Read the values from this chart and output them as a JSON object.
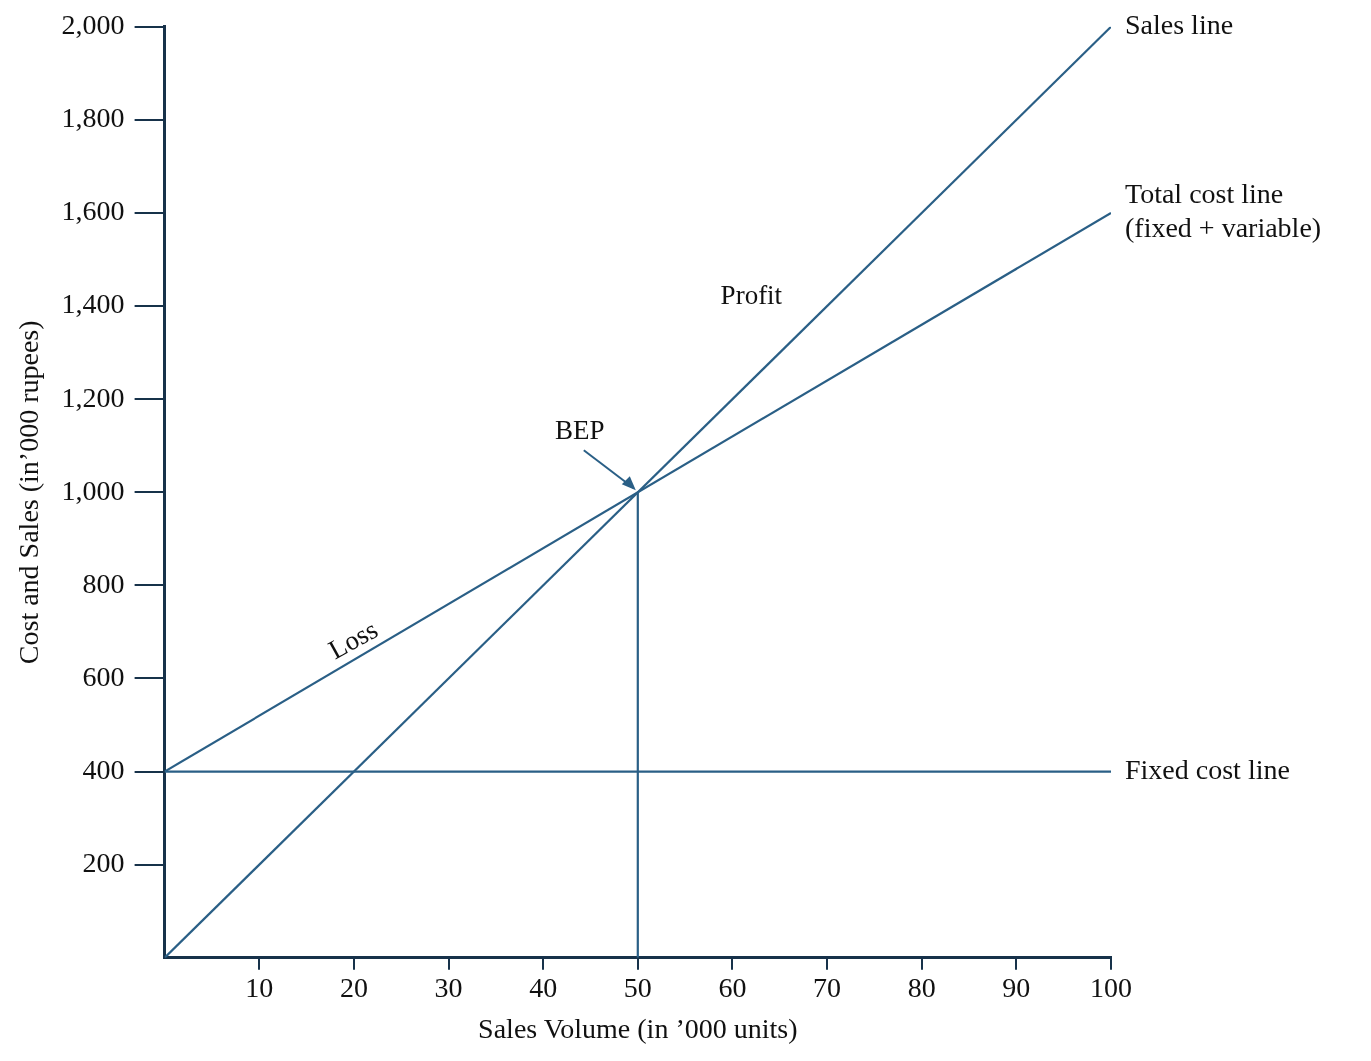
{
  "chart_data": {
    "type": "line",
    "xlabel": "Sales Volume (in ’000 units)",
    "ylabel": "Cost and Sales (in’000 rupees)",
    "xlim": [
      0,
      100
    ],
    "xticks": [
      10,
      20,
      30,
      40,
      50,
      60,
      70,
      80,
      90,
      100
    ],
    "ylim": [
      0,
      2000
    ],
    "yticks": [
      200,
      400,
      600,
      800,
      {
        "value": 1000,
        "label": "1,000"
      },
      {
        "value": 1200,
        "label": "1,200"
      },
      {
        "value": 1400,
        "label": "1,400"
      },
      {
        "value": 1600,
        "label": "1,600"
      },
      {
        "value": 1800,
        "label": "1,800"
      },
      {
        "value": 2000,
        "label": "2,000"
      }
    ],
    "series": [
      {
        "name": "Sales line",
        "color": "#2a5f86",
        "x": [
          0,
          100
        ],
        "values": [
          0,
          2000
        ]
      },
      {
        "name": "Total cost line (fixed + variable)",
        "color": "#2a5f86",
        "x": [
          0,
          100
        ],
        "values": [
          400,
          1600
        ]
      },
      {
        "name": "Fixed cost line",
        "color": "#2a5f86",
        "x": [
          0,
          100
        ],
        "values": [
          400,
          400
        ]
      },
      {
        "color": "#2a5f86",
        "x": [
          50,
          50
        ],
        "values": [
          0,
          1000
        ]
      }
    ],
    "annotations": [
      {
        "text": "BEP",
        "x": 50,
        "y": 1000
      },
      "Profit",
      "Loss"
    ],
    "grid": false,
    "legend": false,
    "marker": "none",
    "line_style": "solid"
  }
}
